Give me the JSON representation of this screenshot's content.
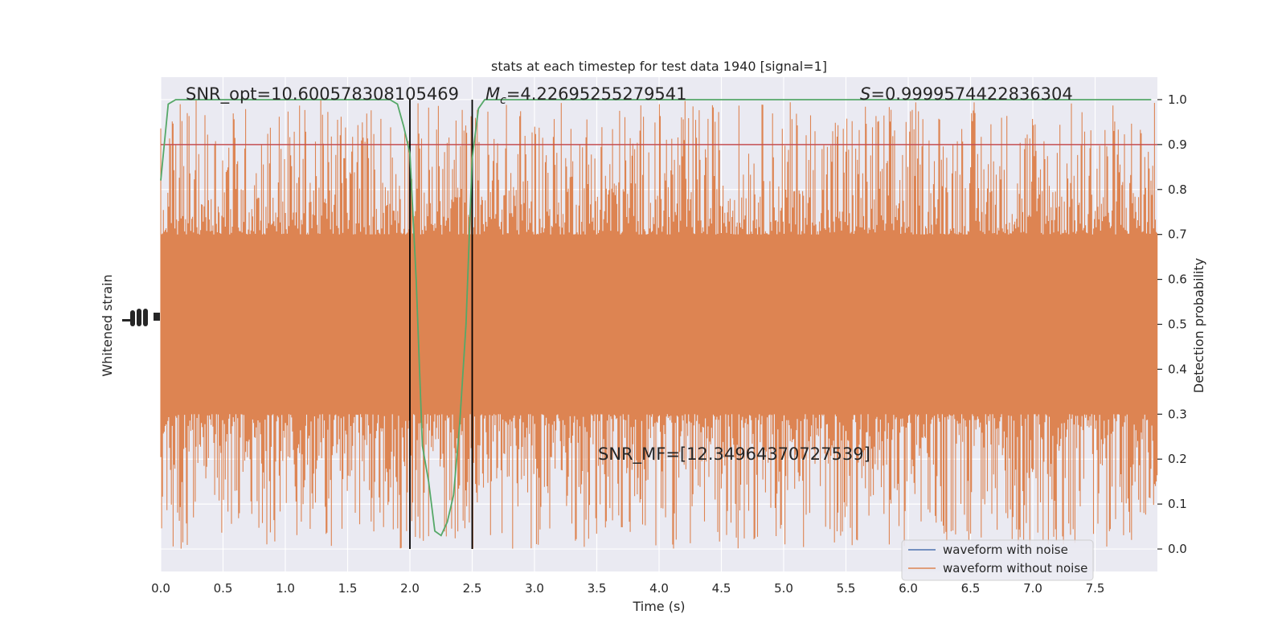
{
  "chart_data": {
    "type": "line",
    "title": "stats at each timestep for test data 1940 [signal=1]",
    "xlabel": "Time (s)",
    "ylabel_left": "Whitened strain",
    "ylabel_right": "Detection probability",
    "xlim": [
      0,
      8
    ],
    "ylim_right": [
      -0.05,
      1.05
    ],
    "x_ticks": [
      "0.0",
      "0.5",
      "1.0",
      "1.5",
      "2.0",
      "2.5",
      "3.0",
      "3.5",
      "4.0",
      "4.5",
      "5.0",
      "5.5",
      "6.0",
      "6.5",
      "7.0",
      "7.5"
    ],
    "x_tick_values": [
      0,
      0.5,
      1,
      1.5,
      2,
      2.5,
      3,
      3.5,
      4,
      4.5,
      5,
      5.5,
      6,
      6.5,
      7,
      7.5
    ],
    "y_ticks_right": [
      "0.0",
      "0.1",
      "0.2",
      "0.3",
      "0.4",
      "0.5",
      "0.6",
      "0.7",
      "0.8",
      "0.9",
      "1.0"
    ],
    "y_tick_values_right": [
      0,
      0.1,
      0.2,
      0.3,
      0.4,
      0.5,
      0.6,
      0.7,
      0.8,
      0.9,
      1.0
    ],
    "annotations": {
      "snr_opt": "SNR_opt=10.600578308105469",
      "mc_symbol": "M",
      "mc_sub": "c",
      "mc_value": "=4.22695255279541",
      "s_symbol": "S",
      "s_value": "=0.9999574422836304",
      "snr_mf": "SNR_MF=[12.34964370727539]"
    },
    "legend": {
      "position": "lower-right",
      "entries": [
        "waveform with noise",
        "waveform without noise"
      ]
    },
    "threshold": {
      "value": 0.9,
      "color": "#c44e52"
    },
    "vlines": {
      "x": [
        2.0,
        2.5
      ],
      "color": "#000000"
    },
    "detection_probability": {
      "name": "Detection probability",
      "color": "#55a868",
      "x": [
        0.0,
        0.06,
        0.12,
        0.18,
        0.25,
        0.5,
        1.0,
        1.5,
        1.75,
        1.84,
        1.9,
        1.95,
        2.0,
        2.05,
        2.1,
        2.15,
        2.2,
        2.25,
        2.3,
        2.35,
        2.4,
        2.45,
        2.5,
        2.55,
        2.6,
        2.65,
        2.7,
        3.0,
        4.0,
        5.0,
        6.0,
        7.0,
        7.95
      ],
      "y": [
        0.82,
        0.99,
        1.0,
        1.0,
        1.0,
        1.0,
        1.0,
        1.0,
        1.0,
        1.0,
        0.99,
        0.94,
        0.88,
        0.6,
        0.23,
        0.15,
        0.04,
        0.03,
        0.06,
        0.12,
        0.28,
        0.5,
        0.87,
        0.98,
        1.0,
        1.0,
        1.0,
        1.0,
        1.0,
        1.0,
        1.0,
        1.0,
        1.0
      ]
    },
    "series": [
      {
        "name": "waveform with noise",
        "color": "#4c72b0"
      },
      {
        "name": "waveform without noise",
        "color": "#dd8452"
      }
    ],
    "strain_band": {
      "center": 0.5,
      "core_half_width": 0.2,
      "spike_max_up": 0.5,
      "spike_max_down": 0.5
    },
    "grid": true,
    "background": "#eaeaf2"
  }
}
